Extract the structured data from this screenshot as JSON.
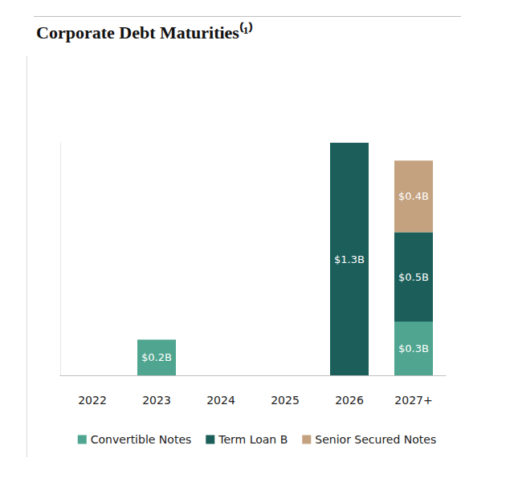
{
  "chart_data": {
    "type": "bar",
    "title": "Corporate Debt Maturities⁽¹⁾",
    "categories": [
      "2022",
      "2023",
      "2024",
      "2025",
      "2026",
      "2027+"
    ],
    "series": [
      {
        "name": "Convertible Notes",
        "color": "#4fa58f",
        "values": [
          null,
          0.2,
          null,
          null,
          null,
          0.3
        ],
        "value_labels": [
          null,
          "$0.2B",
          null,
          null,
          null,
          "$0.3B"
        ]
      },
      {
        "name": "Term Loan B",
        "color": "#1b5e5a",
        "values": [
          null,
          null,
          null,
          null,
          1.3,
          0.5
        ],
        "value_labels": [
          null,
          null,
          null,
          null,
          "$1.3B",
          "$0.5B"
        ]
      },
      {
        "name": "Senior Secured Notes",
        "color": "#c4a27f",
        "values": [
          null,
          null,
          null,
          null,
          null,
          0.4
        ],
        "value_labels": [
          null,
          null,
          null,
          null,
          null,
          "$0.4B"
        ]
      }
    ],
    "ylim": [
      0,
      1.3
    ],
    "stacked": true,
    "data_labels": true,
    "tick_labels": "x",
    "grid": false,
    "legend": "bottom"
  }
}
